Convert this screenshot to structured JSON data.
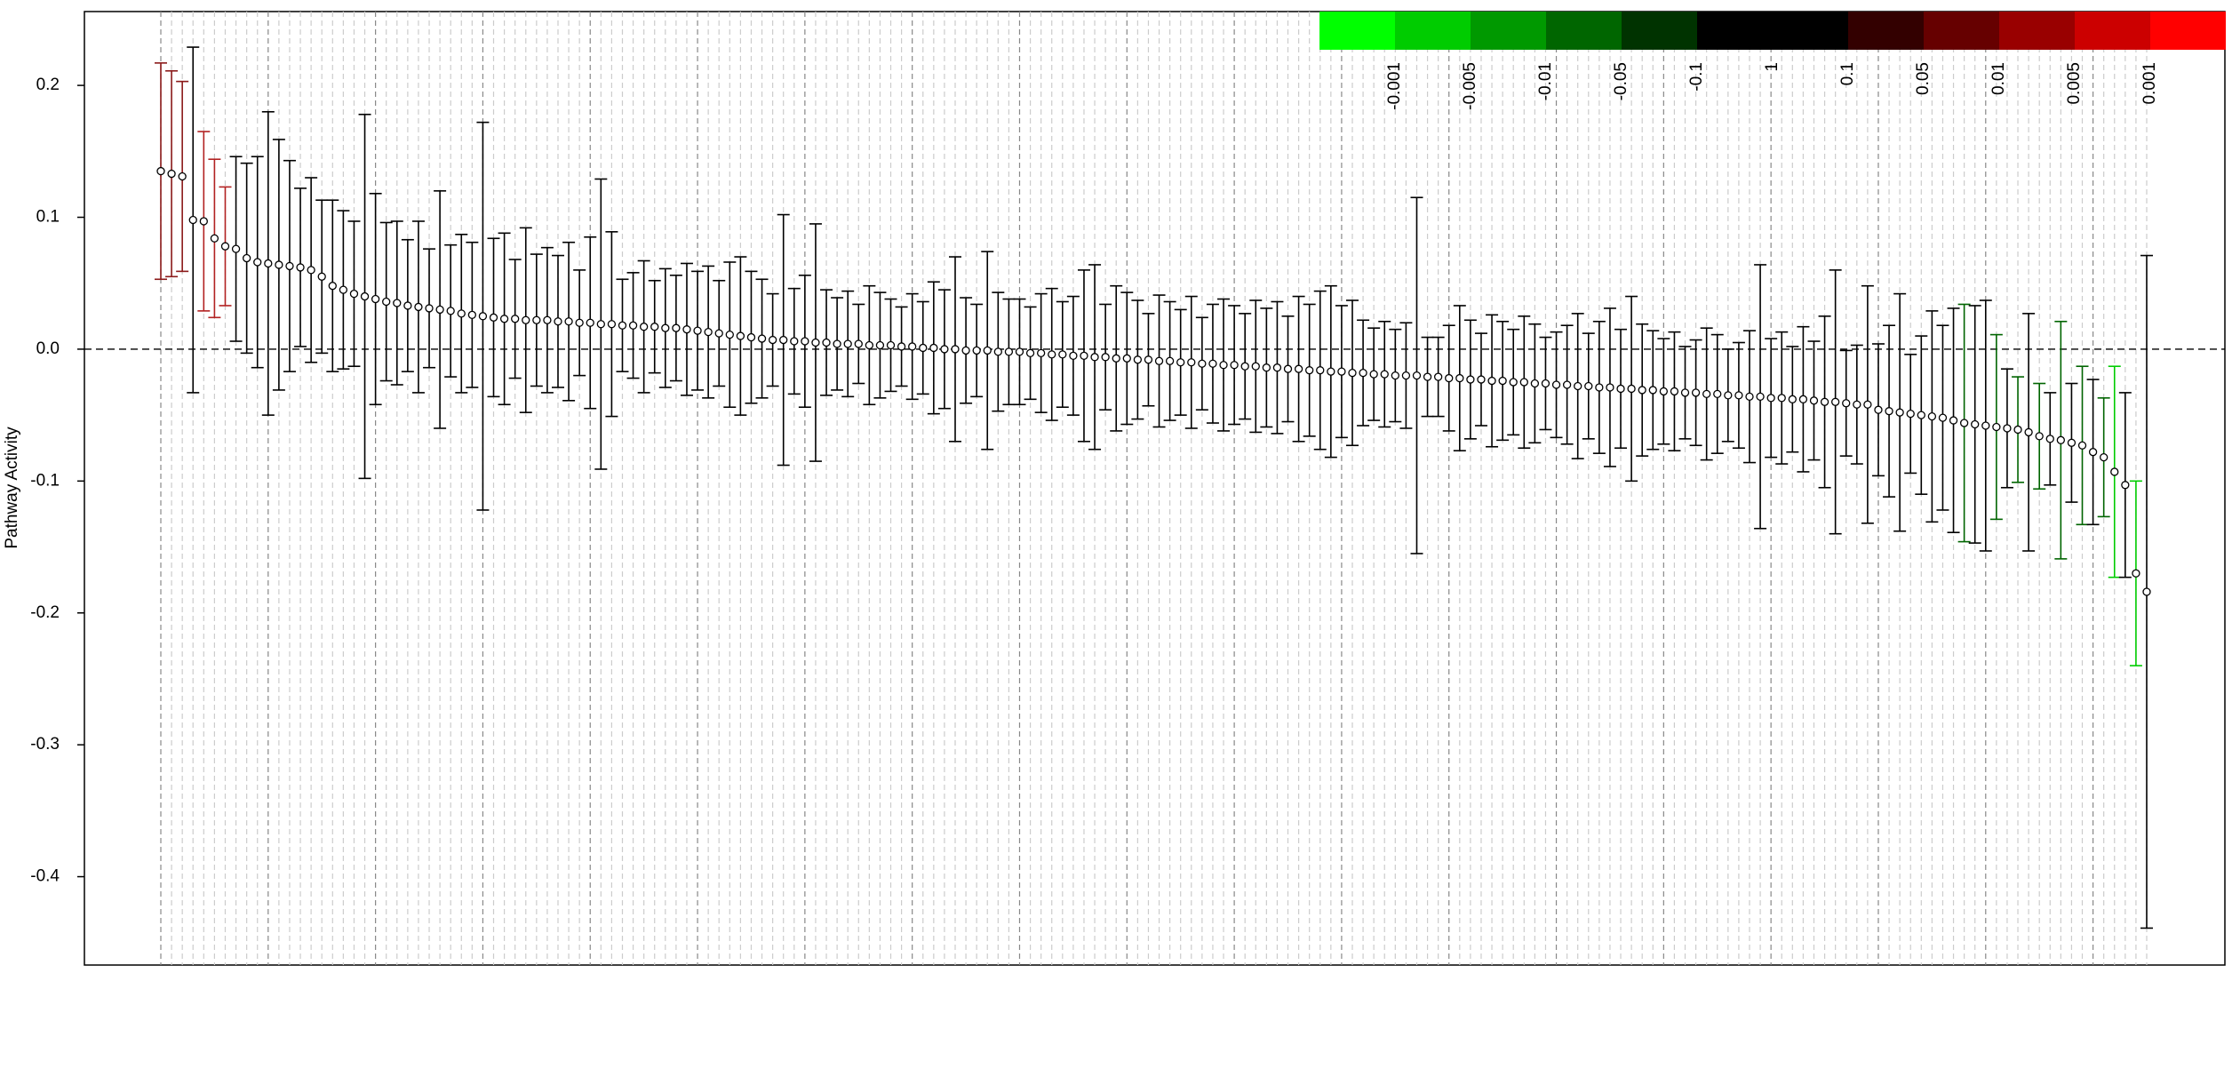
{
  "chart_data": {
    "type": "errorbar",
    "y_label": "Pathway Activity",
    "ylim": [
      -0.467,
      0.256
    ],
    "yticks": [
      -0.4,
      -0.3,
      -0.2,
      -0.1,
      {
        "value": 0,
        "label": "0.0"
      },
      0.1,
      0.2
    ],
    "grid": true,
    "categories": [
      null,
      null,
      null,
      null,
      null,
      null,
      null,
      null,
      null,
      null,
      null,
      null,
      null,
      null,
      null,
      null,
      null,
      null,
      null,
      null,
      null,
      null,
      null,
      null,
      null,
      null,
      null,
      null,
      null,
      null,
      null,
      null,
      null,
      null,
      null,
      null,
      null,
      null,
      null,
      null,
      null,
      null,
      null,
      null,
      null,
      null,
      null,
      null,
      null,
      null,
      null,
      null,
      null,
      null,
      null,
      null,
      null,
      null,
      null,
      null,
      null,
      null,
      null,
      null,
      null,
      null,
      null,
      null,
      null,
      null,
      null,
      null,
      null,
      null,
      null,
      null,
      null,
      null,
      null,
      null,
      null,
      null,
      null,
      null,
      null,
      null,
      null,
      null,
      null,
      null,
      null,
      null,
      null,
      null,
      null,
      null,
      null,
      null,
      null,
      null,
      null,
      null,
      null,
      null,
      null,
      null,
      null,
      null,
      null,
      null,
      null,
      null,
      null,
      null,
      null,
      null,
      null,
      null,
      null,
      null,
      null,
      null,
      null,
      null,
      null,
      null,
      null,
      null,
      null,
      null,
      null,
      null,
      null,
      null,
      null,
      null,
      null,
      null,
      null,
      null,
      null,
      null,
      null,
      null,
      null,
      null,
      null,
      null,
      null,
      null,
      null,
      null,
      null,
      null,
      null,
      null,
      null,
      null,
      null,
      null,
      null,
      null,
      null,
      null,
      null,
      null,
      null,
      null,
      null,
      null,
      null,
      null,
      null,
      null,
      null,
      null,
      null,
      null,
      null,
      null,
      null,
      null,
      null,
      null,
      null,
      null
    ],
    "values": [
      0.135,
      0.133,
      0.131,
      0.098,
      0.097,
      0.084,
      0.078,
      0.076,
      0.069,
      0.066,
      0.065,
      0.064,
      0.063,
      0.062,
      0.06,
      0.055,
      0.048,
      0.045,
      0.042,
      0.04,
      0.038,
      0.036,
      0.035,
      0.033,
      0.032,
      0.031,
      0.03,
      0.029,
      0.027,
      0.026,
      0.025,
      0.024,
      0.023,
      0.023,
      0.022,
      0.022,
      0.022,
      0.021,
      0.021,
      0.02,
      0.02,
      0.019,
      0.019,
      0.018,
      0.018,
      0.017,
      0.017,
      0.016,
      0.016,
      0.015,
      0.014,
      0.013,
      0.012,
      0.011,
      0.01,
      0.009,
      0.008,
      0.007,
      0.007,
      0.006,
      0.006,
      0.005,
      0.005,
      0.004,
      0.004,
      0.004,
      0.003,
      0.003,
      0.003,
      0.002,
      0.002,
      0.001,
      0.001,
      0,
      0,
      -0.001,
      -0.001,
      -0.001,
      -0.002,
      -0.002,
      -0.002,
      -0.003,
      -0.003,
      -0.004,
      -0.004,
      -0.005,
      -0.005,
      -0.006,
      -0.006,
      -0.007,
      -0.007,
      -0.008,
      -0.008,
      -0.009,
      -0.009,
      -0.01,
      -0.01,
      -0.011,
      -0.011,
      -0.012,
      -0.012,
      -0.013,
      -0.013,
      -0.014,
      -0.014,
      -0.015,
      -0.015,
      -0.016,
      -0.016,
      -0.017,
      -0.017,
      -0.018,
      -0.018,
      -0.019,
      -0.019,
      -0.02,
      -0.02,
      -0.02,
      -0.021,
      -0.021,
      -0.022,
      -0.022,
      -0.023,
      -0.023,
      -0.024,
      -0.024,
      -0.025,
      -0.025,
      -0.026,
      -0.026,
      -0.027,
      -0.027,
      -0.028,
      -0.028,
      -0.029,
      -0.029,
      -0.03,
      -0.03,
      -0.031,
      -0.031,
      -0.032,
      -0.032,
      -0.033,
      -0.033,
      -0.034,
      -0.034,
      -0.035,
      -0.035,
      -0.036,
      -0.036,
      -0.037,
      -0.037,
      -0.038,
      -0.038,
      -0.039,
      -0.04,
      -0.04,
      -0.041,
      -0.042,
      -0.042,
      -0.046,
      -0.047,
      -0.048,
      -0.049,
      -0.05,
      -0.051,
      -0.052,
      -0.054,
      -0.056,
      -0.057,
      -0.058,
      -0.059,
      -0.06,
      -0.061,
      -0.063,
      -0.066,
      -0.068,
      -0.069,
      -0.071,
      -0.073,
      -0.078,
      -0.082,
      -0.093,
      -0.103,
      -0.17,
      -0.184
    ],
    "errors": [
      0.082,
      0.078,
      0.072,
      0.131,
      0.068,
      0.06,
      0.045,
      0.07,
      0.072,
      0.08,
      0.115,
      0.095,
      0.08,
      0.06,
      0.07,
      0.058,
      0.065,
      0.06,
      0.055,
      0.138,
      0.08,
      0.06,
      0.062,
      0.05,
      0.065,
      0.045,
      0.09,
      0.05,
      0.06,
      0.055,
      0.147,
      0.06,
      0.065,
      0.045,
      0.07,
      0.05,
      0.055,
      0.05,
      0.06,
      0.04,
      0.065,
      0.11,
      0.07,
      0.035,
      0.04,
      0.05,
      0.035,
      0.045,
      0.04,
      0.05,
      0.045,
      0.05,
      0.04,
      0.055,
      0.06,
      0.05,
      0.045,
      0.035,
      0.095,
      0.04,
      0.05,
      0.09,
      0.04,
      0.035,
      0.04,
      0.03,
      0.045,
      0.04,
      0.035,
      0.03,
      0.04,
      0.035,
      0.05,
      0.045,
      0.07,
      0.04,
      0.035,
      0.075,
      0.045,
      0.04,
      0.04,
      0.035,
      0.045,
      0.05,
      0.04,
      0.045,
      0.065,
      0.07,
      0.04,
      0.055,
      0.05,
      0.045,
      0.035,
      0.05,
      0.045,
      0.04,
      0.05,
      0.035,
      0.045,
      0.05,
      0.045,
      0.04,
      0.05,
      0.045,
      0.05,
      0.04,
      0.055,
      0.05,
      0.06,
      0.065,
      0.05,
      0.055,
      0.04,
      0.035,
      0.04,
      0.035,
      0.04,
      0.135,
      0.03,
      0.03,
      0.04,
      0.055,
      0.045,
      0.035,
      0.05,
      0.045,
      0.04,
      0.05,
      0.045,
      0.035,
      0.04,
      0.045,
      0.055,
      0.04,
      0.05,
      0.06,
      0.045,
      0.07,
      0.05,
      0.045,
      0.04,
      0.045,
      0.035,
      0.04,
      0.05,
      0.045,
      0.035,
      0.04,
      0.05,
      0.1,
      0.045,
      0.05,
      0.04,
      0.055,
      0.045,
      0.065,
      0.1,
      0.04,
      0.045,
      0.09,
      0.05,
      0.065,
      0.09,
      0.045,
      0.06,
      0.08,
      0.07,
      0.085,
      0.09,
      0.09,
      0.095,
      0.07,
      0.045,
      0.04,
      0.09,
      0.04,
      0.035,
      0.09,
      0.045,
      0.06,
      0.055,
      0.045,
      0.08,
      0.07,
      0.07,
      0.255
    ],
    "colors": [
      "#8b1a1a",
      "#8b1a1a",
      "#8b1a1a",
      "#000",
      "#b22222",
      "#b22222",
      "#b22222",
      "#000",
      "#000",
      "#000",
      "#000",
      "#000",
      "#000",
      "#000",
      "#000",
      "#000",
      "#000",
      "#000",
      "#000",
      "#000",
      "#000",
      "#000",
      "#000",
      "#000",
      "#000",
      "#000",
      "#000",
      "#000",
      "#000",
      "#000",
      "#000",
      "#000",
      "#000",
      "#000",
      "#000",
      "#000",
      "#000",
      "#000",
      "#000",
      "#000",
      "#000",
      "#000",
      "#000",
      "#000",
      "#000",
      "#000",
      "#000",
      "#000",
      "#000",
      "#000",
      "#000",
      "#000",
      "#000",
      "#000",
      "#000",
      "#000",
      "#000",
      "#000",
      "#000",
      "#000",
      "#000",
      "#000",
      "#000",
      "#000",
      "#000",
      "#000",
      "#000",
      "#000",
      "#000",
      "#000",
      "#000",
      "#000",
      "#000",
      "#000",
      "#000",
      "#000",
      "#000",
      "#000",
      "#000",
      "#000",
      "#000",
      "#000",
      "#000",
      "#000",
      "#000",
      "#000",
      "#000",
      "#000",
      "#000",
      "#000",
      "#000",
      "#000",
      "#000",
      "#000",
      "#000",
      "#000",
      "#000",
      "#000",
      "#000",
      "#000",
      "#000",
      "#000",
      "#000",
      "#000",
      "#000",
      "#000",
      "#000",
      "#000",
      "#000",
      "#000",
      "#000",
      "#000",
      "#000",
      "#000",
      "#000",
      "#000",
      "#000",
      "#000",
      "#000",
      "#000",
      "#000",
      "#000",
      "#000",
      "#000",
      "#000",
      "#000",
      "#000",
      "#000",
      "#000",
      "#000",
      "#000",
      "#000",
      "#000",
      "#000",
      "#000",
      "#000",
      "#000",
      "#000",
      "#000",
      "#000",
      "#000",
      "#000",
      "#000",
      "#000",
      "#000",
      "#000",
      "#000",
      "#000",
      "#000",
      "#000",
      "#000",
      "#000",
      "#000",
      "#000",
      "#000",
      "#000",
      "#000",
      "#000",
      "#000",
      "#000",
      "#000",
      "#000",
      "#000",
      "#000",
      "#000",
      "#000",
      "#000",
      "#000",
      "#006400",
      "#000",
      "#000",
      "#006400",
      "#000",
      "#006400",
      "#000",
      "#006400",
      "#000",
      "#006400",
      "#000",
      "#006400",
      "#000",
      "#006400",
      "#00cc00",
      "#000",
      "#00cc00",
      "#000"
    ],
    "legend": {
      "colors": [
        "#00ff00",
        "#00cc00",
        "#009900",
        "#006600",
        "#003300",
        "#000000",
        "#000000",
        "#330000",
        "#660000",
        "#990000",
        "#cc0000",
        "#ff0000"
      ],
      "labels": [
        "-0.001",
        "-0.005",
        "-0.01",
        "-0.05",
        "-0.1",
        "1",
        "0.1",
        "0.05",
        "0.01",
        "0.005",
        "0.001"
      ]
    }
  }
}
